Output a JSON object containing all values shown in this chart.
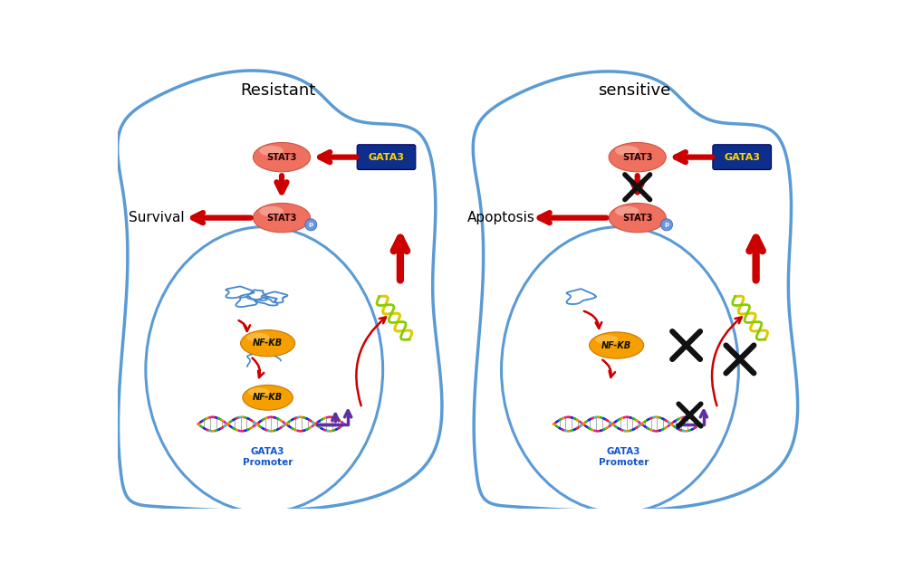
{
  "bg_color": "#ffffff",
  "cell_color": "#5b9bd5",
  "stat3_fill": "#f07060",
  "stat3_hi": "#f9b8aa",
  "nfkb_fill": "#f5a000",
  "nfkb_hi": "#ffd070",
  "gata3_bg": "#0d2e8a",
  "gata3_fg": "#ffd700",
  "arrow_red": "#cc0000",
  "promoter_purple": "#6030a0",
  "cross_color": "#111111",
  "p_fill": "#6699dd",
  "p_text": "#ffffff",
  "dna_colors": [
    "#ff2222",
    "#2222ff",
    "#22cc22",
    "#ff8800",
    "#cc22cc"
  ],
  "left_title": "Resistant",
  "right_title": "sensitive",
  "survival_label": "Survival",
  "apoptosis_label": "Apoptosis",
  "stat3_label": "STAT3",
  "nfkb_label": "NF-KB",
  "gata3_label": "GATA3",
  "promoter_label": "GATA3\nPromoter"
}
